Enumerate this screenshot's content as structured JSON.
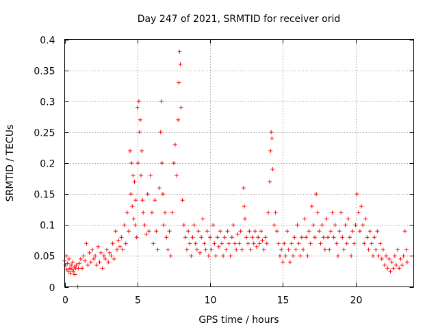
{
  "chart_data": {
    "type": "scatter",
    "title": "Day 247 of 2021, SRMTID for receiver orid",
    "xlabel": "GPS time / hours",
    "ylabel": "SRMTID / TECUs",
    "xlim": [
      0,
      24
    ],
    "ylim": [
      0,
      0.4
    ],
    "xticks": [
      0,
      5,
      10,
      15,
      20
    ],
    "yticks": [
      0,
      0.05,
      0.1,
      0.15,
      0.2,
      0.25,
      0.3,
      0.35,
      0.4
    ],
    "xtick_labels": [
      "0",
      "5",
      "10",
      "15",
      "20"
    ],
    "ytick_labels": [
      "0",
      "0.05",
      "0.1",
      "0.15",
      "0.2",
      "0.25",
      "0.3",
      "0.35",
      "0.4"
    ],
    "grid": true,
    "marker": "+",
    "color": "#ff0000",
    "series": [
      {
        "name": "SRMTID",
        "points": [
          [
            0.0,
            0.042
          ],
          [
            0.05,
            0.035
          ],
          [
            0.1,
            0.05
          ],
          [
            0.15,
            0.028
          ],
          [
            0.2,
            0.038
          ],
          [
            0.25,
            0.025
          ],
          [
            0.3,
            0.045
          ],
          [
            0.35,
            0.03
          ],
          [
            0.4,
            0.022
          ],
          [
            0.45,
            0.035
          ],
          [
            0.5,
            0.028
          ],
          [
            0.55,
            0.04
          ],
          [
            0.6,
            0.025
          ],
          [
            0.65,
            0.032
          ],
          [
            0.7,
            0.02
          ],
          [
            0.75,
            0.03
          ],
          [
            0.8,
            0.035
          ],
          [
            0.9,
            0.0
          ],
          [
            0.95,
            0.03
          ],
          [
            1.0,
            0.038
          ],
          [
            1.1,
            0.045
          ],
          [
            1.2,
            0.03
          ],
          [
            1.3,
            0.05
          ],
          [
            1.4,
            0.042
          ],
          [
            1.5,
            0.07
          ],
          [
            1.6,
            0.035
          ],
          [
            1.7,
            0.055
          ],
          [
            1.8,
            0.04
          ],
          [
            1.9,
            0.06
          ],
          [
            2.0,
            0.045
          ],
          [
            2.1,
            0.05
          ],
          [
            2.2,
            0.035
          ],
          [
            2.3,
            0.065
          ],
          [
            2.4,
            0.04
          ],
          [
            2.5,
            0.055
          ],
          [
            2.6,
            0.03
          ],
          [
            2.7,
            0.05
          ],
          [
            2.8,
            0.045
          ],
          [
            2.9,
            0.06
          ],
          [
            3.0,
            0.04
          ],
          [
            3.1,
            0.055
          ],
          [
            3.2,
            0.05
          ],
          [
            3.3,
            0.07
          ],
          [
            3.4,
            0.045
          ],
          [
            3.5,
            0.09
          ],
          [
            3.6,
            0.06
          ],
          [
            3.7,
            0.075
          ],
          [
            3.8,
            0.065
          ],
          [
            3.9,
            0.08
          ],
          [
            4.0,
            0.06
          ],
          [
            4.1,
            0.1
          ],
          [
            4.2,
            0.07
          ],
          [
            4.3,
            0.12
          ],
          [
            4.4,
            0.09
          ],
          [
            4.5,
            0.22
          ],
          [
            4.55,
            0.15
          ],
          [
            4.6,
            0.2
          ],
          [
            4.65,
            0.13
          ],
          [
            4.7,
            0.18
          ],
          [
            4.75,
            0.11
          ],
          [
            4.8,
            0.17
          ],
          [
            4.85,
            0.1
          ],
          [
            4.9,
            0.14
          ],
          [
            4.95,
            0.08
          ],
          [
            5.0,
            0.29
          ],
          [
            5.05,
            0.2
          ],
          [
            5.1,
            0.3
          ],
          [
            5.15,
            0.25
          ],
          [
            5.2,
            0.27
          ],
          [
            5.25,
            0.18
          ],
          [
            5.3,
            0.22
          ],
          [
            5.35,
            0.14
          ],
          [
            5.4,
            0.12
          ],
          [
            5.5,
            0.1
          ],
          [
            5.6,
            0.085
          ],
          [
            5.7,
            0.15
          ],
          [
            5.8,
            0.09
          ],
          [
            5.9,
            0.18
          ],
          [
            6.0,
            0.12
          ],
          [
            6.1,
            0.07
          ],
          [
            6.2,
            0.14
          ],
          [
            6.3,
            0.09
          ],
          [
            6.4,
            0.06
          ],
          [
            6.5,
            0.16
          ],
          [
            6.6,
            0.25
          ],
          [
            6.65,
            0.3
          ],
          [
            6.7,
            0.2
          ],
          [
            6.75,
            0.15
          ],
          [
            6.8,
            0.1
          ],
          [
            6.9,
            0.12
          ],
          [
            7.0,
            0.08
          ],
          [
            7.1,
            0.06
          ],
          [
            7.2,
            0.09
          ],
          [
            7.3,
            0.05
          ],
          [
            7.4,
            0.12
          ],
          [
            7.5,
            0.2
          ],
          [
            7.6,
            0.23
          ],
          [
            7.7,
            0.18
          ],
          [
            7.8,
            0.27
          ],
          [
            7.85,
            0.33
          ],
          [
            7.9,
            0.38
          ],
          [
            7.95,
            0.36
          ],
          [
            8.0,
            0.29
          ],
          [
            8.1,
            0.14
          ],
          [
            8.2,
            0.1
          ],
          [
            8.3,
            0.08
          ],
          [
            8.4,
            0.06
          ],
          [
            8.5,
            0.09
          ],
          [
            8.6,
            0.07
          ],
          [
            8.7,
            0.05
          ],
          [
            8.8,
            0.08
          ],
          [
            8.9,
            0.1
          ],
          [
            9.0,
            0.07
          ],
          [
            9.1,
            0.06
          ],
          [
            9.2,
            0.09
          ],
          [
            9.3,
            0.055
          ],
          [
            9.4,
            0.08
          ],
          [
            9.5,
            0.11
          ],
          [
            9.6,
            0.07
          ],
          [
            9.7,
            0.06
          ],
          [
            9.8,
            0.09
          ],
          [
            9.9,
            0.05
          ],
          [
            10.0,
            0.08
          ],
          [
            10.1,
            0.06
          ],
          [
            10.2,
            0.1
          ],
          [
            10.3,
            0.07
          ],
          [
            10.4,
            0.05
          ],
          [
            10.5,
            0.08
          ],
          [
            10.6,
            0.065
          ],
          [
            10.7,
            0.09
          ],
          [
            10.8,
            0.07
          ],
          [
            10.9,
            0.05
          ],
          [
            11.0,
            0.08
          ],
          [
            11.1,
            0.06
          ],
          [
            11.2,
            0.09
          ],
          [
            11.3,
            0.07
          ],
          [
            11.4,
            0.05
          ],
          [
            11.5,
            0.08
          ],
          [
            11.6,
            0.1
          ],
          [
            11.7,
            0.07
          ],
          [
            11.8,
            0.06
          ],
          [
            11.9,
            0.085
          ],
          [
            12.0,
            0.07
          ],
          [
            12.1,
            0.09
          ],
          [
            12.2,
            0.06
          ],
          [
            12.3,
            0.16
          ],
          [
            12.35,
            0.13
          ],
          [
            12.4,
            0.11
          ],
          [
            12.5,
            0.08
          ],
          [
            12.6,
            0.07
          ],
          [
            12.7,
            0.09
          ],
          [
            12.8,
            0.06
          ],
          [
            12.9,
            0.08
          ],
          [
            13.0,
            0.07
          ],
          [
            13.1,
            0.09
          ],
          [
            13.2,
            0.065
          ],
          [
            13.3,
            0.08
          ],
          [
            13.4,
            0.07
          ],
          [
            13.5,
            0.09
          ],
          [
            13.6,
            0.075
          ],
          [
            13.7,
            0.06
          ],
          [
            13.8,
            0.08
          ],
          [
            13.9,
            0.07
          ],
          [
            14.0,
            0.12
          ],
          [
            14.1,
            0.17
          ],
          [
            14.15,
            0.22
          ],
          [
            14.2,
            0.25
          ],
          [
            14.25,
            0.24
          ],
          [
            14.3,
            0.19
          ],
          [
            14.4,
            0.1
          ],
          [
            14.5,
            0.12
          ],
          [
            14.6,
            0.09
          ],
          [
            14.7,
            0.07
          ],
          [
            14.8,
            0.05
          ],
          [
            14.9,
            0.06
          ],
          [
            15.0,
            0.04
          ],
          [
            15.1,
            0.07
          ],
          [
            15.2,
            0.05
          ],
          [
            15.3,
            0.09
          ],
          [
            15.4,
            0.06
          ],
          [
            15.5,
            0.04
          ],
          [
            15.6,
            0.07
          ],
          [
            15.7,
            0.05
          ],
          [
            15.8,
            0.08
          ],
          [
            15.9,
            0.06
          ],
          [
            16.0,
            0.1
          ],
          [
            16.1,
            0.07
          ],
          [
            16.2,
            0.05
          ],
          [
            16.3,
            0.08
          ],
          [
            16.4,
            0.06
          ],
          [
            16.5,
            0.11
          ],
          [
            16.6,
            0.08
          ],
          [
            16.7,
            0.05
          ],
          [
            16.8,
            0.09
          ],
          [
            16.9,
            0.07
          ],
          [
            17.0,
            0.13
          ],
          [
            17.1,
            0.1
          ],
          [
            17.2,
            0.08
          ],
          [
            17.3,
            0.15
          ],
          [
            17.4,
            0.12
          ],
          [
            17.5,
            0.09
          ],
          [
            17.6,
            0.07
          ],
          [
            17.7,
            0.1
          ],
          [
            17.8,
            0.08
          ],
          [
            17.9,
            0.06
          ],
          [
            18.0,
            0.11
          ],
          [
            18.1,
            0.08
          ],
          [
            18.2,
            0.06
          ],
          [
            18.3,
            0.09
          ],
          [
            18.4,
            0.12
          ],
          [
            18.5,
            0.08
          ],
          [
            18.6,
            0.1
          ],
          [
            18.7,
            0.07
          ],
          [
            18.8,
            0.05
          ],
          [
            18.9,
            0.09
          ],
          [
            19.0,
            0.12
          ],
          [
            19.1,
            0.08
          ],
          [
            19.2,
            0.06
          ],
          [
            19.3,
            0.1
          ],
          [
            19.4,
            0.07
          ],
          [
            19.5,
            0.11
          ],
          [
            19.6,
            0.08
          ],
          [
            19.7,
            0.05
          ],
          [
            19.8,
            0.09
          ],
          [
            19.9,
            0.07
          ],
          [
            20.0,
            0.1
          ],
          [
            20.1,
            0.15
          ],
          [
            20.2,
            0.12
          ],
          [
            20.3,
            0.09
          ],
          [
            20.4,
            0.13
          ],
          [
            20.5,
            0.1
          ],
          [
            20.6,
            0.07
          ],
          [
            20.7,
            0.11
          ],
          [
            20.8,
            0.08
          ],
          [
            20.9,
            0.06
          ],
          [
            21.0,
            0.09
          ],
          [
            21.1,
            0.07
          ],
          [
            21.2,
            0.05
          ],
          [
            21.3,
            0.08
          ],
          [
            21.4,
            0.06
          ],
          [
            21.5,
            0.09
          ],
          [
            21.6,
            0.05
          ],
          [
            21.7,
            0.07
          ],
          [
            21.8,
            0.045
          ],
          [
            21.9,
            0.06
          ],
          [
            22.0,
            0.035
          ],
          [
            22.1,
            0.05
          ],
          [
            22.2,
            0.03
          ],
          [
            22.3,
            0.045
          ],
          [
            22.4,
            0.025
          ],
          [
            22.5,
            0.04
          ],
          [
            22.6,
            0.03
          ],
          [
            22.7,
            0.05
          ],
          [
            22.8,
            0.035
          ],
          [
            22.9,
            0.06
          ],
          [
            23.0,
            0.03
          ],
          [
            23.1,
            0.045
          ],
          [
            23.2,
            0.035
          ],
          [
            23.3,
            0.05
          ],
          [
            23.4,
            0.09
          ],
          [
            23.5,
            0.06
          ],
          [
            23.55,
            0.04
          ]
        ]
      }
    ]
  }
}
